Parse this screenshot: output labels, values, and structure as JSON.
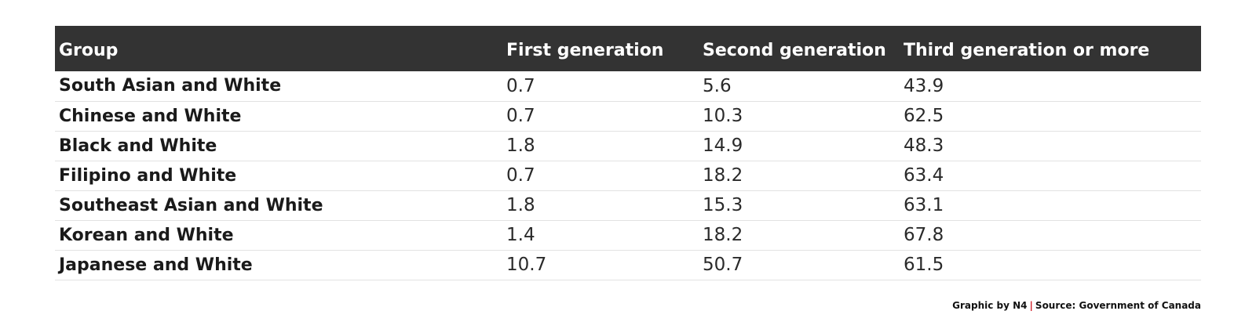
{
  "chart_data": {
    "type": "table",
    "columns": [
      "Group",
      "First generation",
      "Second generation",
      "Third generation or more"
    ],
    "rows": [
      {
        "group": "South Asian and White",
        "values": [
          "0.7",
          "5.6",
          "43.9"
        ]
      },
      {
        "group": "Chinese and White",
        "values": [
          "0.7",
          "10.3",
          "62.5"
        ]
      },
      {
        "group": "Black and White",
        "values": [
          "1.8",
          "14.9",
          "48.3"
        ]
      },
      {
        "group": "Filipino and White",
        "values": [
          "0.7",
          "18.2",
          "63.4"
        ]
      },
      {
        "group": "Southeast Asian and White",
        "values": [
          "1.8",
          "15.3",
          "63.1"
        ]
      },
      {
        "group": "Korean and White",
        "values": [
          "1.4",
          "18.2",
          "67.8"
        ]
      },
      {
        "group": "Japanese and White",
        "values": [
          "10.7",
          "50.7",
          "61.5"
        ]
      }
    ]
  },
  "footer": {
    "credit": "Graphic by N4",
    "separator": "|",
    "source": "Source: Government of Canada"
  },
  "colors": {
    "header_background": "#333333",
    "header_text": "#ffffff",
    "separator_accent": "#d0202a",
    "row_divider": "#e2e2e2"
  }
}
